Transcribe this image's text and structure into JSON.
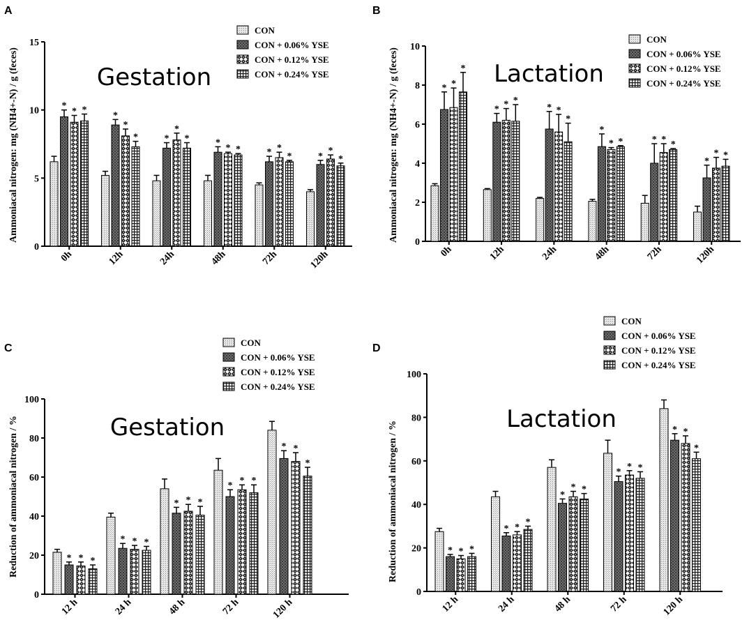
{
  "legend": [
    "CON",
    "CON + 0.06% YSE",
    "CON + 0.12% YSE",
    "CON + 0.24% YSE"
  ],
  "chart_data": [
    {
      "panel": "A",
      "type": "bar",
      "title": "Gestation",
      "ylabel": "Ammoniacal nitrogen: mg (NH4+-N) / g (feces)",
      "categories": [
        "0h",
        "12h",
        "24h",
        "48h",
        "72h",
        "120h"
      ],
      "ylim": [
        0,
        15
      ],
      "yticks": [
        0,
        5,
        10,
        15
      ],
      "series": [
        {
          "name": "CON",
          "values": [
            6.2,
            5.2,
            4.8,
            4.8,
            4.5,
            4.0
          ],
          "errors": [
            0.4,
            0.3,
            0.4,
            0.4,
            0.15,
            0.15
          ],
          "sig": [
            false,
            false,
            false,
            false,
            false,
            false
          ]
        },
        {
          "name": "CON + 0.06% YSE",
          "values": [
            9.5,
            8.9,
            7.2,
            6.9,
            6.2,
            6.0
          ],
          "errors": [
            0.5,
            0.4,
            0.4,
            0.4,
            0.4,
            0.3
          ],
          "sig": [
            true,
            true,
            true,
            true,
            true,
            true
          ]
        },
        {
          "name": "CON + 0.12% YSE",
          "values": [
            9.1,
            8.1,
            7.8,
            6.8,
            6.5,
            6.4
          ],
          "errors": [
            0.5,
            0.5,
            0.5,
            0.1,
            0.4,
            0.3
          ],
          "sig": [
            true,
            true,
            true,
            true,
            true,
            true
          ]
        },
        {
          "name": "CON + 0.24% YSE",
          "values": [
            9.2,
            7.3,
            7.2,
            6.7,
            6.2,
            5.9
          ],
          "errors": [
            0.5,
            0.4,
            0.4,
            0.1,
            0.1,
            0.2
          ],
          "sig": [
            true,
            true,
            true,
            true,
            true,
            true
          ]
        }
      ]
    },
    {
      "panel": "B",
      "type": "bar",
      "title": "Lactation",
      "ylabel": "Ammoniacal nitrogen: mg (NH4+-N) / g (feces)",
      "categories": [
        "0h",
        "12h",
        "24h",
        "48h",
        "72h",
        "120h"
      ],
      "ylim": [
        0,
        10
      ],
      "yticks": [
        0,
        2,
        4,
        6,
        8,
        10
      ],
      "series": [
        {
          "name": "CON",
          "values": [
            2.85,
            2.65,
            2.2,
            2.05,
            1.95,
            1.5
          ],
          "errors": [
            0.1,
            0.05,
            0.05,
            0.1,
            0.4,
            0.3
          ],
          "sig": [
            false,
            false,
            false,
            false,
            false,
            false
          ]
        },
        {
          "name": "CON + 0.06% YSE",
          "values": [
            6.75,
            6.1,
            5.75,
            4.85,
            4.0,
            3.25
          ],
          "errors": [
            0.9,
            0.45,
            0.9,
            0.65,
            1.0,
            0.65
          ],
          "sig": [
            true,
            true,
            true,
            true,
            true,
            true
          ]
        },
        {
          "name": "CON + 0.12% YSE",
          "values": [
            6.85,
            6.2,
            5.6,
            4.7,
            4.55,
            3.75
          ],
          "errors": [
            1.0,
            0.6,
            0.9,
            0.1,
            0.45,
            0.55
          ],
          "sig": [
            true,
            true,
            true,
            true,
            true,
            true
          ]
        },
        {
          "name": "CON + 0.24% YSE",
          "values": [
            7.65,
            6.15,
            5.1,
            4.85,
            4.7,
            3.85
          ],
          "errors": [
            1.0,
            0.85,
            0.95,
            0.05,
            0.05,
            0.35
          ],
          "sig": [
            true,
            true,
            true,
            true,
            true,
            true
          ]
        }
      ]
    },
    {
      "panel": "C",
      "type": "bar",
      "title": "Gestation",
      "ylabel": "Reduction of ammoniacal nitrogen / %",
      "categories": [
        "12 h",
        "24 h",
        "48 h",
        "72 h",
        "120 h"
      ],
      "ylim": [
        0,
        100
      ],
      "yticks": [
        0,
        20,
        40,
        60,
        80,
        100
      ],
      "series": [
        {
          "name": "CON",
          "values": [
            21.5,
            39.5,
            54,
            63.5,
            84
          ],
          "errors": [
            1.5,
            2,
            5,
            6,
            4.5
          ],
          "sig": [
            false,
            false,
            false,
            false,
            false
          ]
        },
        {
          "name": "CON + 0.06% YSE",
          "values": [
            15,
            23.5,
            41.5,
            50,
            69.5
          ],
          "errors": [
            1.5,
            2.5,
            3,
            3.5,
            4
          ],
          "sig": [
            true,
            true,
            true,
            true,
            true
          ]
        },
        {
          "name": "CON + 0.12% YSE",
          "values": [
            14.5,
            23,
            42.5,
            53.5,
            68
          ],
          "errors": [
            2,
            2,
            3.5,
            2.5,
            4.5
          ],
          "sig": [
            true,
            true,
            true,
            true,
            true
          ]
        },
        {
          "name": "CON + 0.24% YSE",
          "values": [
            13,
            22.5,
            40.5,
            52,
            60.5
          ],
          "errors": [
            2,
            2,
            4.5,
            4,
            4.5
          ],
          "sig": [
            true,
            true,
            true,
            true,
            true
          ]
        }
      ]
    },
    {
      "panel": "D",
      "type": "bar",
      "title": "Lactation",
      "ylabel": "Reduction of ammoniacal nitrogen / %",
      "categories": [
        "12 h",
        "24 h",
        "48 h",
        "72 h",
        "120 h"
      ],
      "ylim": [
        0,
        100
      ],
      "yticks": [
        0,
        20,
        40,
        60,
        80,
        100
      ],
      "series": [
        {
          "name": "CON",
          "values": [
            27.5,
            43.5,
            57,
            63.5,
            84
          ],
          "errors": [
            1.5,
            2.5,
            3.5,
            6,
            4
          ],
          "sig": [
            false,
            false,
            false,
            false,
            false
          ]
        },
        {
          "name": "CON + 0.06% YSE",
          "values": [
            16,
            25.5,
            40.5,
            50.5,
            69.5
          ],
          "errors": [
            1,
            1.5,
            2,
            2.5,
            3
          ],
          "sig": [
            true,
            true,
            true,
            true,
            true
          ]
        },
        {
          "name": "CON + 0.12% YSE",
          "values": [
            15,
            26,
            43.5,
            53.5,
            68
          ],
          "errors": [
            1.5,
            1.5,
            2.5,
            2,
            3.5
          ],
          "sig": [
            true,
            true,
            true,
            true,
            true
          ]
        },
        {
          "name": "CON + 0.24% YSE",
          "values": [
            16,
            28.5,
            42.5,
            52,
            61
          ],
          "errors": [
            1.5,
            1.5,
            2.5,
            3,
            3
          ],
          "sig": [
            true,
            true,
            true,
            true,
            true
          ]
        }
      ]
    }
  ]
}
